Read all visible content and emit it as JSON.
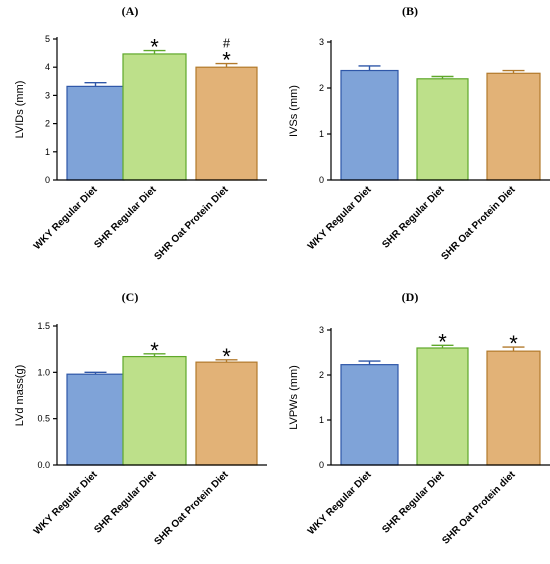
{
  "colors": {
    "wky": "#7fa3d8",
    "wky_edge": "#2f57a8",
    "shr": "#bde08a",
    "shr_edge": "#5fa82b",
    "oat": "#e2b277",
    "oat_edge": "#b27a2c"
  },
  "chart_data": [
    {
      "type": "bar",
      "panel": "(A)",
      "ylabel": "LVIDs (mm)",
      "ylim": [
        0,
        5
      ],
      "yticks": [
        "0",
        "1",
        "2",
        "3",
        "4",
        "5"
      ],
      "categories": [
        "WKY Regular Diet",
        "SHR Regular Diet",
        "SHR Oat Protein Diet"
      ],
      "values": [
        3.32,
        4.47,
        4.0
      ],
      "errors": [
        0.13,
        0.12,
        0.13
      ],
      "annotations": [
        "",
        "*",
        "#\n*"
      ]
    },
    {
      "type": "bar",
      "panel": "(B)",
      "ylabel": "IVSs (mm)",
      "ylim": [
        0,
        3
      ],
      "yticks": [
        "0",
        "1",
        "2",
        "3"
      ],
      "categories": [
        "WKY Regular Diet",
        "SHR Regular Diet",
        "SHR Oat Protein Diet"
      ],
      "values": [
        2.38,
        2.2,
        2.32
      ],
      "errors": [
        0.1,
        0.05,
        0.06
      ],
      "annotations": [
        "",
        "",
        ""
      ]
    },
    {
      "type": "bar",
      "panel": "(C)",
      "ylabel": "LVd mass(g)",
      "ylim": [
        0,
        1.5
      ],
      "yticks": [
        "0.0",
        "0.5",
        "1.0",
        "1.5"
      ],
      "categories": [
        "WKY Regular Diet",
        "SHR Regular Diet",
        "SHR Oat Protein Diet"
      ],
      "values": [
        0.98,
        1.17,
        1.11
      ],
      "errors": [
        0.02,
        0.03,
        0.025
      ],
      "annotations": [
        "",
        "*",
        "*"
      ]
    },
    {
      "type": "bar",
      "panel": "(D)",
      "ylabel": "LVPWs (mm)",
      "ylim": [
        0,
        3
      ],
      "yticks": [
        "0",
        "1",
        "2",
        "3"
      ],
      "categories": [
        "WKY Regular Diet",
        "SHR Regular Diet",
        "SHR Oat Protein diet"
      ],
      "values": [
        2.23,
        2.6,
        2.53
      ],
      "errors": [
        0.08,
        0.06,
        0.09
      ],
      "annotations": [
        "",
        "*",
        "*"
      ]
    }
  ]
}
